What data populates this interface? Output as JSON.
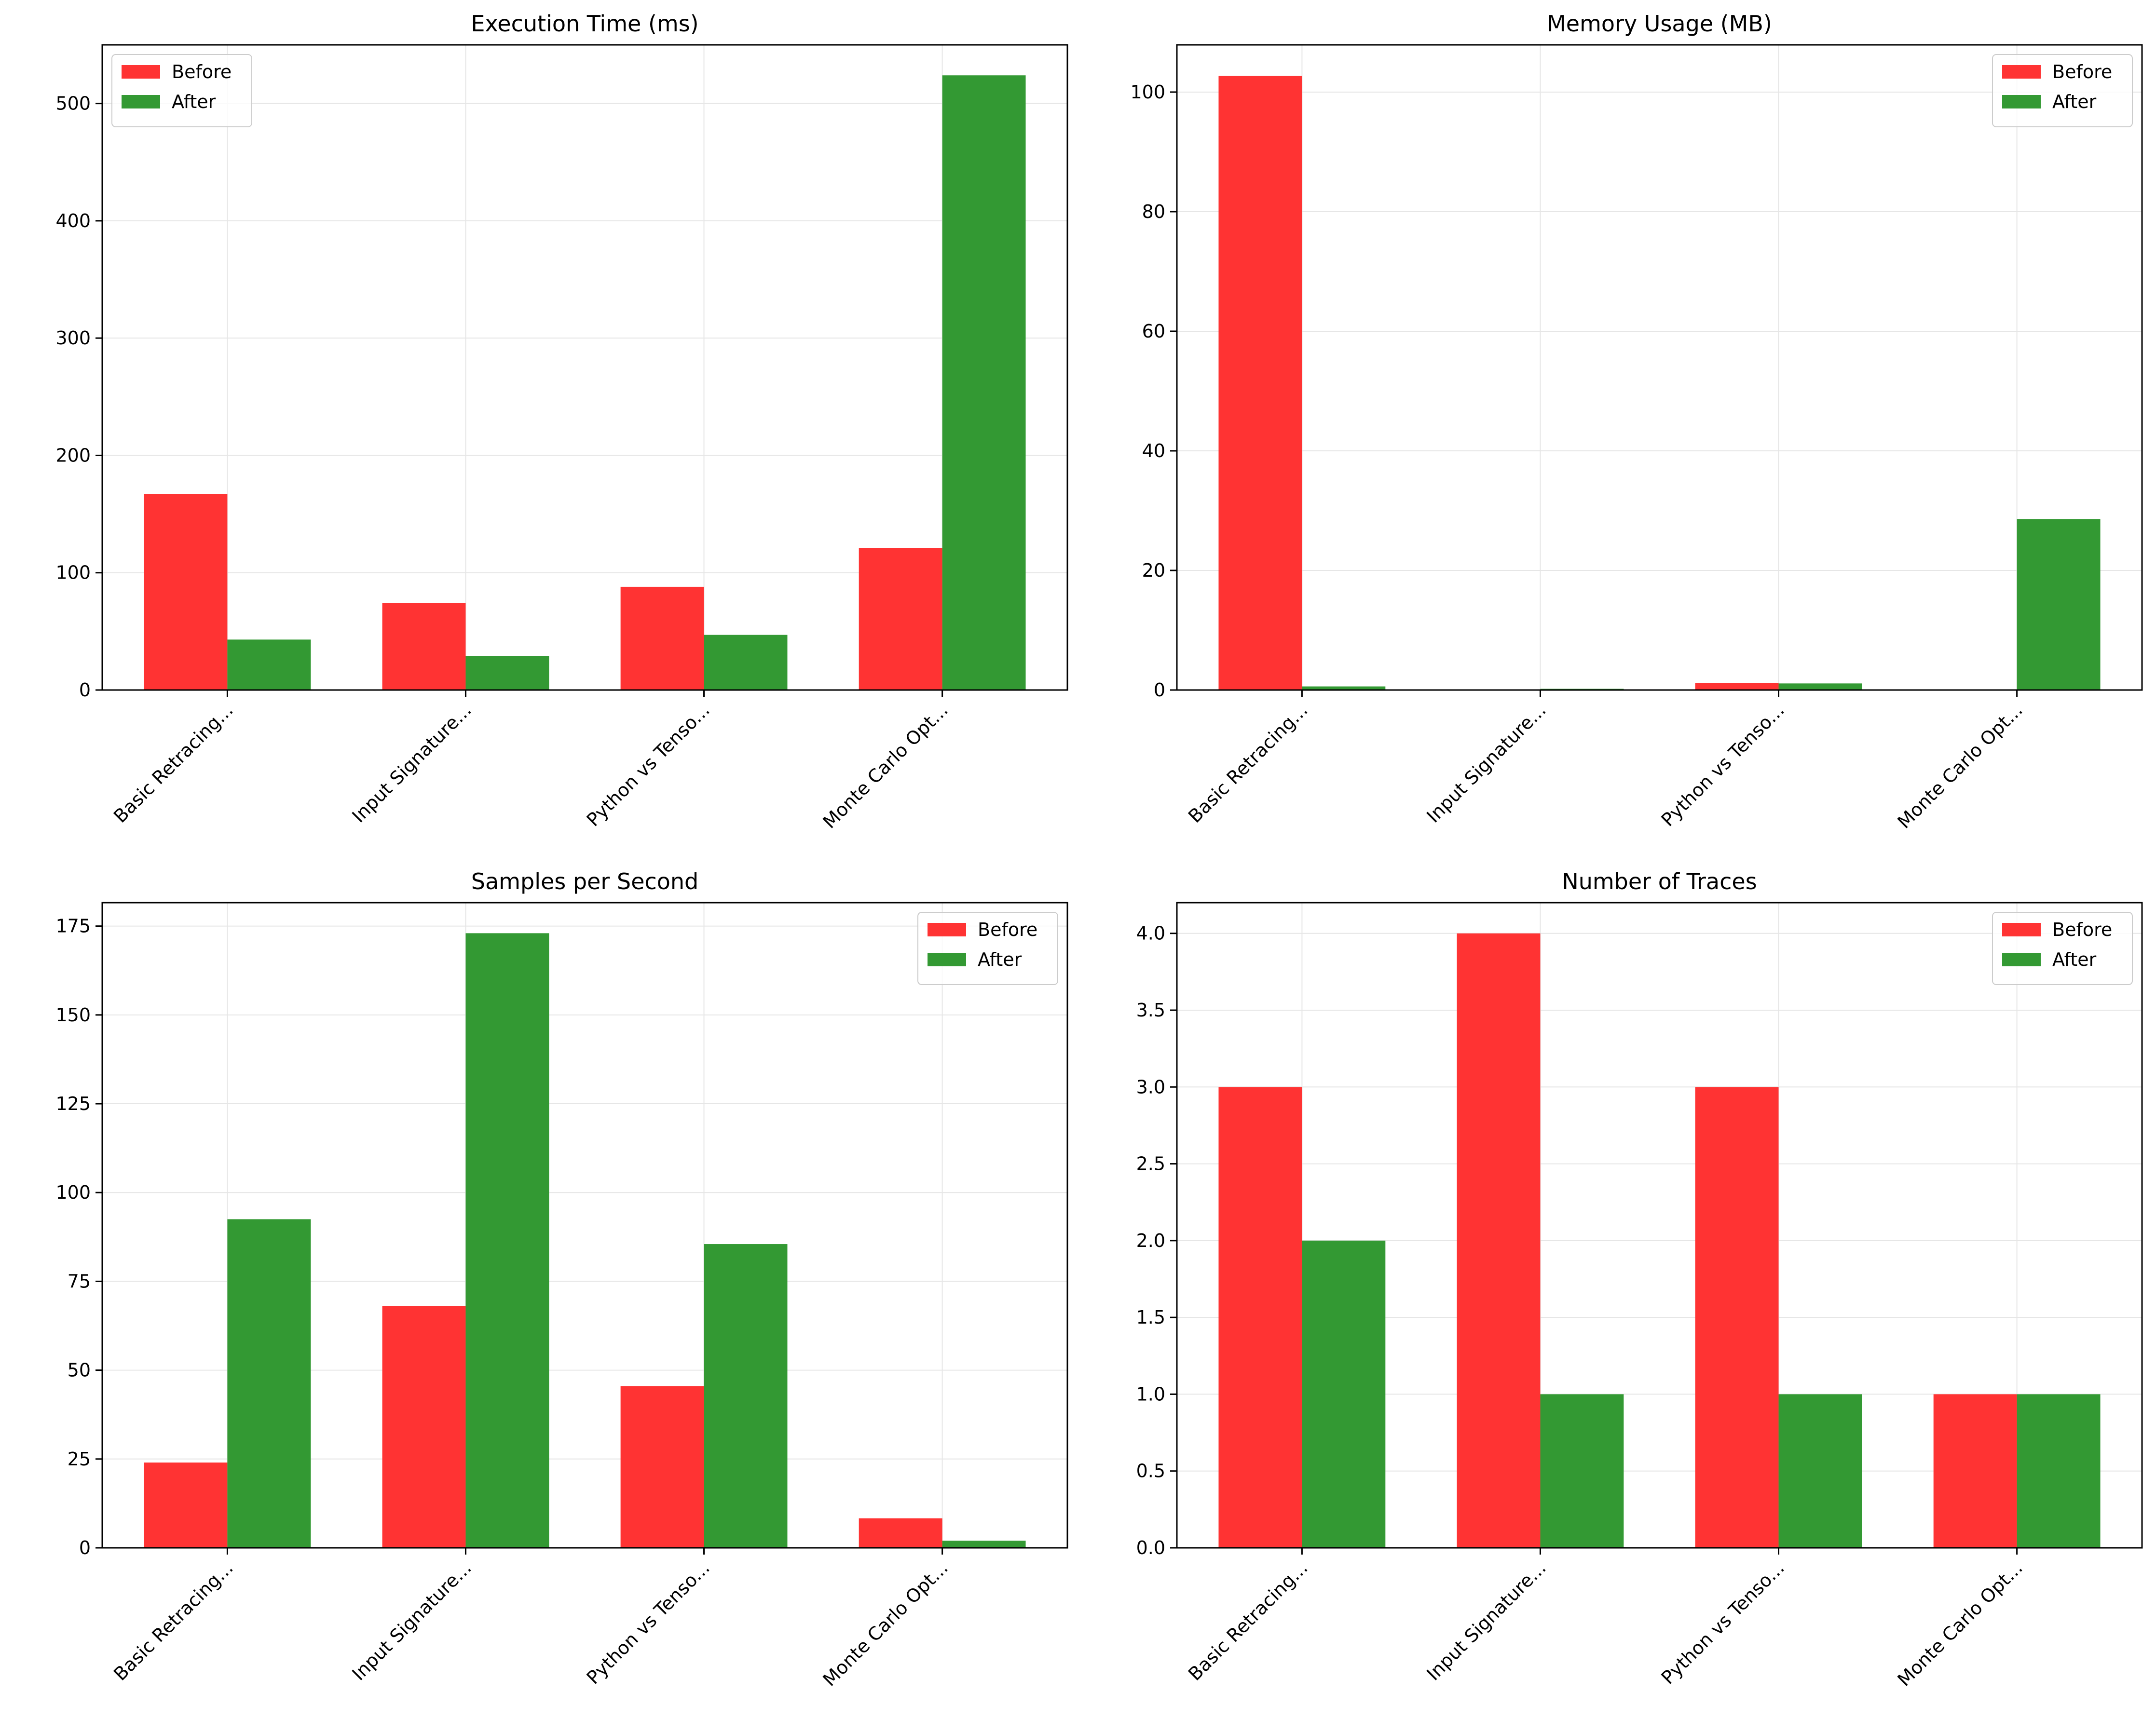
{
  "colors": {
    "before": "#ff3333",
    "after": "#339933",
    "grid": "#e6e6e6",
    "axis": "#000000"
  },
  "legend_labels": {
    "before": "Before",
    "after": "After"
  },
  "chart_data": [
    {
      "type": "bar",
      "title": "Execution Time (ms)",
      "categories": [
        "Basic Retracing...",
        "Input Signature...",
        "Python vs Tenso...",
        "Monte Carlo Opt..."
      ],
      "series": [
        {
          "name": "Before",
          "values": [
            167,
            74,
            88,
            121
          ]
        },
        {
          "name": "After",
          "values": [
            43,
            29,
            47,
            524
          ]
        }
      ],
      "ylim": [
        0,
        550
      ],
      "yticks": [
        0,
        100,
        200,
        300,
        400,
        500
      ],
      "ytick_labels": [
        "0",
        "100",
        "200",
        "300",
        "400",
        "500"
      ],
      "grid": true,
      "legend": "top-left"
    },
    {
      "type": "bar",
      "title": "Memory Usage (MB)",
      "categories": [
        "Basic Retracing...",
        "Input Signature...",
        "Python vs Tenso...",
        "Monte Carlo Opt..."
      ],
      "series": [
        {
          "name": "Before",
          "values": [
            102.7,
            0,
            1.2,
            0
          ]
        },
        {
          "name": "After",
          "values": [
            0.6,
            0.2,
            1.1,
            28.6
          ]
        }
      ],
      "ylim": [
        0,
        107.9
      ],
      "yticks": [
        0,
        20,
        40,
        60,
        80,
        100
      ],
      "ytick_labels": [
        "0",
        "20",
        "40",
        "60",
        "80",
        "100"
      ],
      "grid": true,
      "legend": "top-right"
    },
    {
      "type": "bar",
      "title": "Samples per Second",
      "categories": [
        "Basic Retracing...",
        "Input Signature...",
        "Python vs Tenso...",
        "Monte Carlo Opt..."
      ],
      "series": [
        {
          "name": "Before",
          "values": [
            24,
            68,
            45.5,
            8.3
          ]
        },
        {
          "name": "After",
          "values": [
            92.5,
            173,
            85.5,
            2
          ]
        }
      ],
      "ylim": [
        0,
        181.6
      ],
      "yticks": [
        0,
        25,
        50,
        75,
        100,
        125,
        150,
        175
      ],
      "ytick_labels": [
        "0",
        "25",
        "50",
        "75",
        "100",
        "125",
        "150",
        "175"
      ],
      "grid": true,
      "legend": "top-right"
    },
    {
      "type": "bar",
      "title": "Number of Traces",
      "categories": [
        "Basic Retracing...",
        "Input Signature...",
        "Python vs Tenso...",
        "Monte Carlo Opt..."
      ],
      "series": [
        {
          "name": "Before",
          "values": [
            3,
            4,
            3,
            1
          ]
        },
        {
          "name": "After",
          "values": [
            2,
            1,
            1,
            1
          ]
        }
      ],
      "ylim": [
        0,
        4.2
      ],
      "yticks": [
        0,
        0.5,
        1,
        1.5,
        2,
        2.5,
        3,
        3.5,
        4
      ],
      "ytick_labels": [
        "0.0",
        "0.5",
        "1.0",
        "1.5",
        "2.0",
        "2.5",
        "3.0",
        "3.5",
        "4.0"
      ],
      "grid": true,
      "legend": "top-right"
    }
  ]
}
